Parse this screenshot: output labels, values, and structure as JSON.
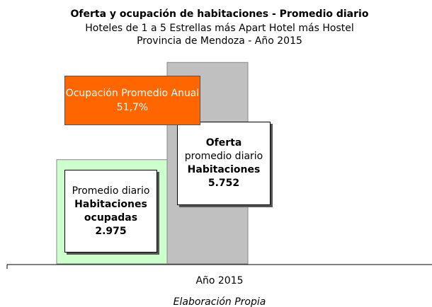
{
  "chart_data": {
    "type": "bar",
    "title": "Oferta y ocupación de habitaciones - Promedio diario",
    "subtitle": [
      "Hoteles de 1 a 5 Estrellas más Apart Hotel más Hostel",
      "Provincia de Mendoza - Año 2015"
    ],
    "categories": [
      "Año 2015"
    ],
    "series": [
      {
        "color": "#ccffcc",
        "values": [
          2975
        ],
        "value_labels": [
          "2.975"
        ],
        "label": [
          {
            "text": "Promedio diario",
            "bold": false
          },
          {
            "text": "Habitaciones ocupadas",
            "bold": true
          }
        ]
      },
      {
        "color": "#c0c0c0",
        "values": [
          5752
        ],
        "value_labels": [
          "5.752"
        ],
        "label": [
          {
            "text": "Oferta",
            "bold": true
          },
          {
            "text": "promedio diario",
            "bold": false
          },
          {
            "text": "Habitaciones",
            "bold": true
          }
        ]
      }
    ],
    "annotation": {
      "text": "Ocupación Promedio Anual",
      "value_label": "51,7%",
      "color": "#ff6600"
    },
    "ylim": [
      0,
      6000
    ],
    "source": "Elaboración Propia"
  }
}
